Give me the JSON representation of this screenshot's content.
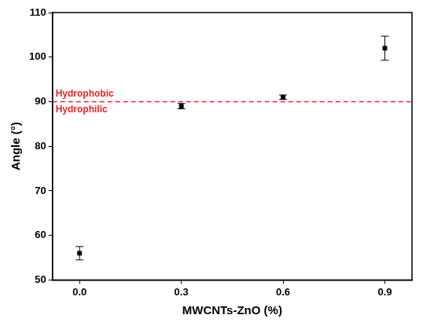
{
  "chart_data": {
    "type": "scatter",
    "x_label": "MWCNTs-ZnO (%)",
    "y_label": "Angle (°)",
    "x": [
      0.0,
      0.3,
      0.6,
      0.9
    ],
    "values": [
      56,
      89,
      91,
      102
    ],
    "errors": [
      1.5,
      0.6,
      0.5,
      2.7
    ],
    "color": "#000000",
    "marker": "square",
    "xlim": [
      -0.08,
      0.98
    ],
    "xticks": [
      {
        "value": 0,
        "label": "0.0"
      },
      0.3,
      0.6,
      0.9
    ],
    "ylim": [
      50,
      110
    ],
    "yticks": [
      50,
      60,
      70,
      80,
      90,
      100,
      110
    ],
    "grid": false,
    "threshold": {
      "value": 90,
      "color": "#e8232b",
      "line_style": "dashed",
      "label_above": "Hydrophobic",
      "label_below": "Hydrophilic"
    }
  }
}
